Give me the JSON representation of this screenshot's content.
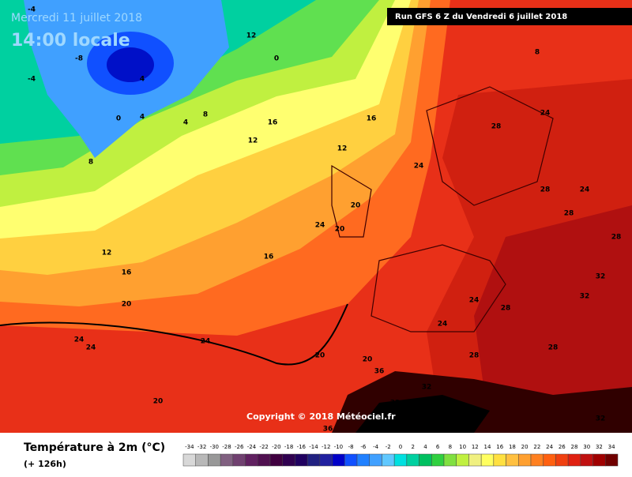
{
  "header": {
    "date": "Mercredi 11 juillet 2018",
    "time": "14:00 locale",
    "run": "Run GFS 6 Z du Vendredi 6 juillet 2018"
  },
  "copyright": "Copyright © 2018 Météociel.fr",
  "legend": {
    "title": "Température à 2m (°C)",
    "subtitle": "(+ 126h)",
    "labels": [
      -34,
      -32,
      -30,
      -28,
      -26,
      -24,
      -22,
      -20,
      -18,
      -16,
      -14,
      -12,
      -10,
      -8,
      -6,
      -4,
      -2,
      0,
      2,
      4,
      6,
      8,
      10,
      12,
      14,
      16,
      18,
      20,
      22,
      24,
      26,
      28,
      30,
      32,
      34
    ],
    "colors": [
      "#d8d8d8",
      "#b8b8b8",
      "#989898",
      "#806080",
      "#704070",
      "#602060",
      "#501050",
      "#400040",
      "#300050",
      "#200060",
      "#202080",
      "#2020a0",
      "#0000c8",
      "#1050ff",
      "#2080ff",
      "#40a0ff",
      "#60c8ff",
      "#00e0e0",
      "#00d0a0",
      "#00c060",
      "#30d040",
      "#80e040",
      "#c0f040",
      "#f0f080",
      "#ffff60",
      "#ffe040",
      "#ffc040",
      "#ffa030",
      "#ff8020",
      "#ff6010",
      "#f04010",
      "#e02010",
      "#c01010",
      "#a00000",
      "#700000"
    ]
  },
  "map_labels": [
    "-4",
    "-8",
    "-4",
    "0",
    "4",
    "4",
    "8",
    "0",
    "4",
    "8",
    "8",
    "12",
    "16",
    "12",
    "12",
    "16",
    "16",
    "12",
    "20",
    "16",
    "20",
    "24",
    "20",
    "24",
    "28",
    "24",
    "28",
    "24",
    "28",
    "32",
    "28",
    "24",
    "28",
    "32",
    "36",
    "32",
    "36",
    "40",
    "36",
    "24",
    "24",
    "20",
    "20",
    "24",
    "20",
    "32",
    "28",
    "24",
    "28",
    "32"
  ]
}
